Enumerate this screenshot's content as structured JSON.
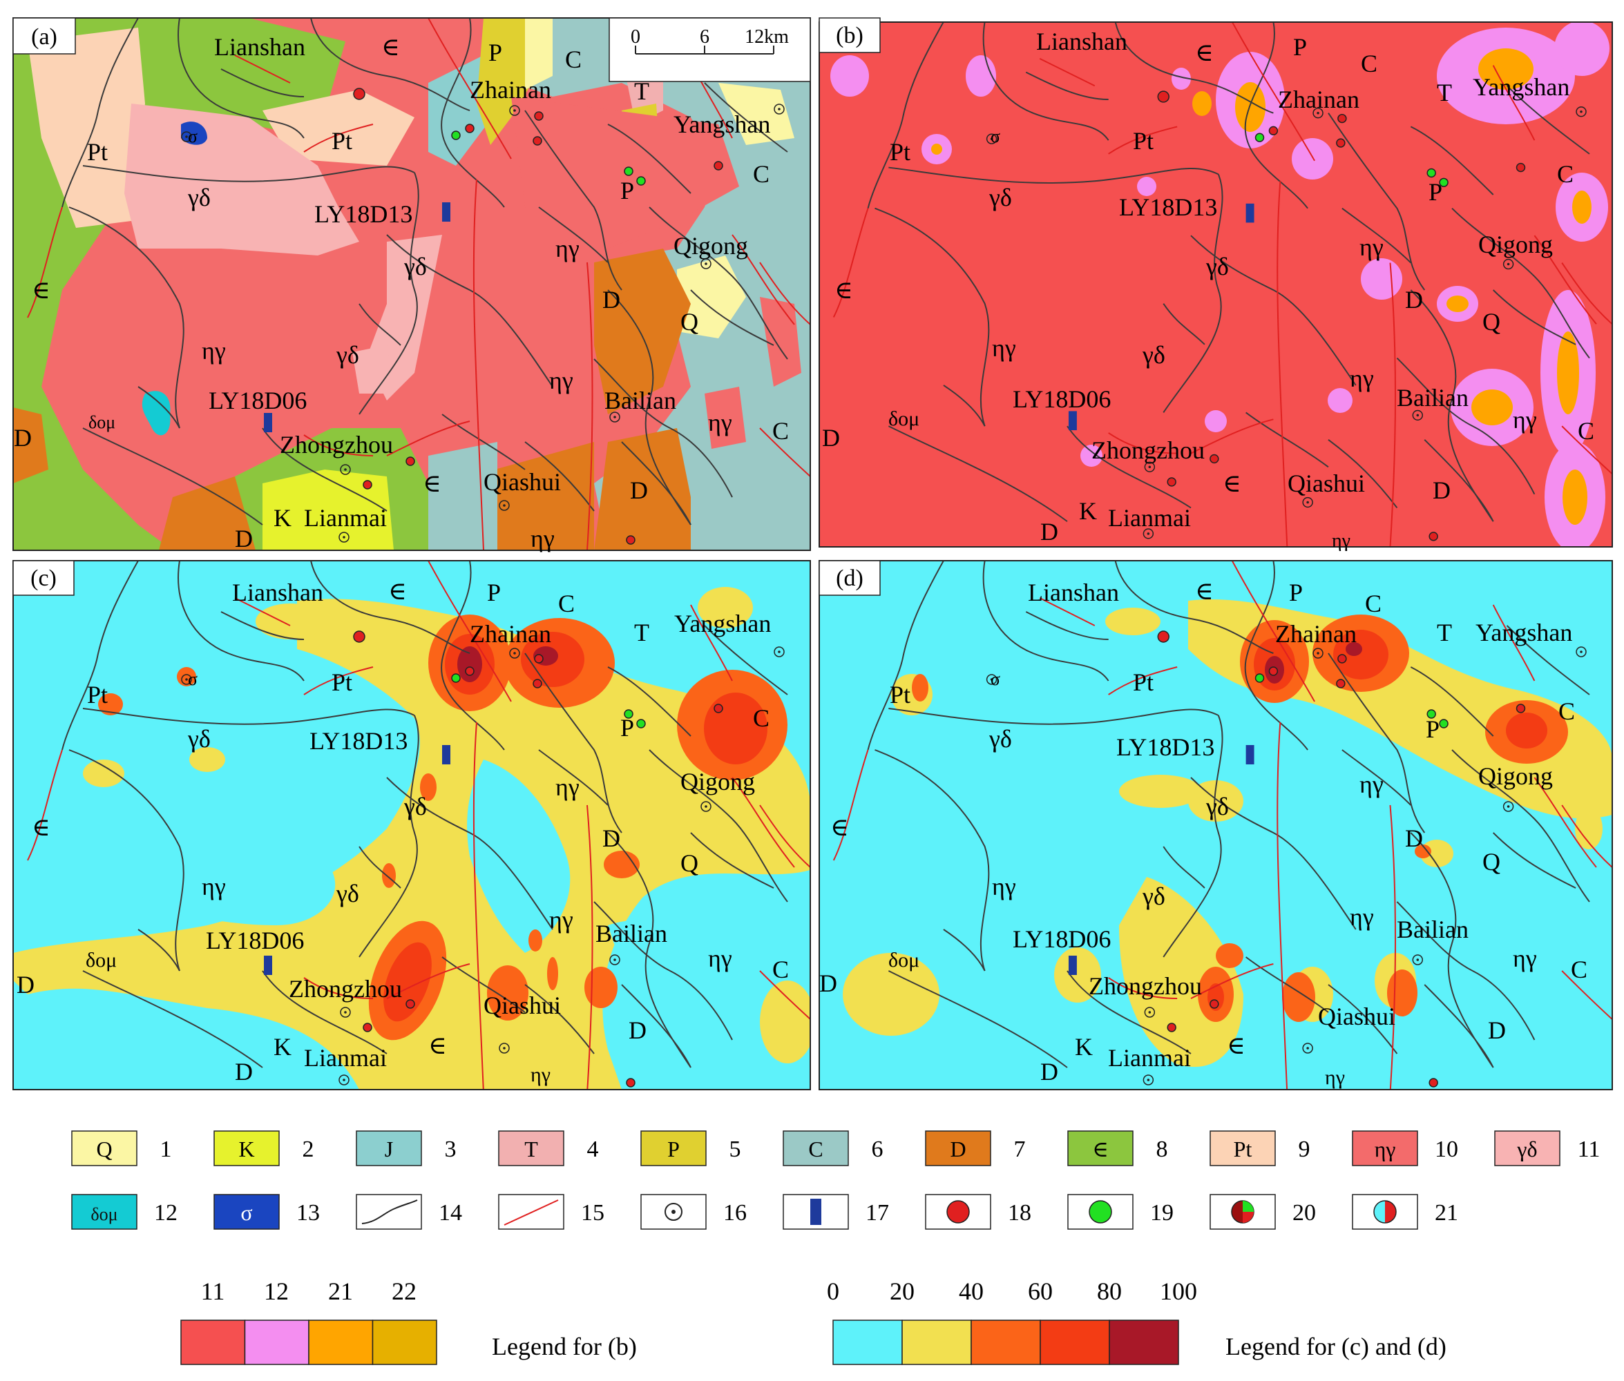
{
  "panels": {
    "a": {
      "letter": "(a)"
    },
    "b": {
      "letter": "(b)"
    },
    "c": {
      "letter": "(c)"
    },
    "d": {
      "letter": "(d)"
    }
  },
  "scale_bar": {
    "ticks": [
      "0",
      "6",
      "12km"
    ]
  },
  "place_names": {
    "lianshan": "Lianshan",
    "zhainan": "Zhainan",
    "yangshan": "Yangshan",
    "qigong": "Qigong",
    "bailian": "Bailian",
    "zhongzhou": "Zhongzhou",
    "qiashui": "Qiashui",
    "lianmai": "Lianmai",
    "ly18d13": "LY18D13",
    "ly18d06": "LY18D06"
  },
  "unit_codes": {
    "Q": "Q",
    "K": "K",
    "J": "J",
    "T": "T",
    "P": "P",
    "C": "C",
    "D": "D",
    "Cam": "∈",
    "Pt": "Pt",
    "eta_gamma": "ηγ",
    "gamma_delta": "γδ",
    "delta_o_mu": "δομ",
    "sigma": "σ"
  },
  "legend_items": [
    {
      "num": "1",
      "code": "Q",
      "color": "#fbf6a4"
    },
    {
      "num": "2",
      "code": "K",
      "color": "#e6f22d"
    },
    {
      "num": "3",
      "code": "J",
      "color": "#8ccfcf"
    },
    {
      "num": "4",
      "code": "T",
      "color": "#f2b0b0"
    },
    {
      "num": "5",
      "code": "P",
      "color": "#e0d030"
    },
    {
      "num": "6",
      "code": "C",
      "color": "#9bc9c6"
    },
    {
      "num": "7",
      "code": "D",
      "color": "#e07a1c"
    },
    {
      "num": "8",
      "code": "∈",
      "color": "#8cc63e"
    },
    {
      "num": "9",
      "code": "Pt",
      "color": "#fcd3b5"
    },
    {
      "num": "10",
      "code": "ηγ",
      "color": "#f36b6b"
    },
    {
      "num": "11",
      "code": "γδ",
      "color": "#f8b3b3"
    },
    {
      "num": "12",
      "code": "δομ",
      "color": "#14cbd3"
    },
    {
      "num": "13",
      "code": "σ",
      "color": "#1a45c0"
    },
    {
      "num": "14",
      "code": "",
      "color": "#ffffff",
      "symbol": "contact-line"
    },
    {
      "num": "15",
      "code": "",
      "color": "#ffffff",
      "symbol": "fault-line"
    },
    {
      "num": "16",
      "code": "",
      "color": "#ffffff",
      "symbol": "town"
    },
    {
      "num": "17",
      "code": "",
      "color": "#ffffff",
      "symbol": "sample"
    },
    {
      "num": "18",
      "code": "",
      "color": "#ffffff",
      "symbol": "red-dot"
    },
    {
      "num": "19",
      "code": "",
      "color": "#ffffff",
      "symbol": "green-dot"
    },
    {
      "num": "20",
      "code": "",
      "color": "#ffffff",
      "symbol": "red-green-dot"
    },
    {
      "num": "21",
      "code": "",
      "color": "#ffffff",
      "symbol": "cyan-red-dot"
    }
  ],
  "legend_b": {
    "labels": [
      "11",
      "12",
      "21",
      "22"
    ],
    "colors": [
      "#f55050",
      "#f48ef0",
      "#ffa500",
      "#e6b000"
    ],
    "caption": "Legend for (b)"
  },
  "legend_cd": {
    "ticks": [
      "0",
      "20",
      "40",
      "60",
      "80",
      "100"
    ],
    "colors": [
      "#5ef2fa",
      "#f2e050",
      "#fb6418",
      "#f33c14",
      "#a81828"
    ],
    "caption": "Legend for (c) and (d)"
  },
  "colors": {
    "contact": "#3a3a3a",
    "fault": "#e02020",
    "sample": "#1e3a9c",
    "red_dot": "#e02020",
    "green_dot": "#22e022",
    "dark_red": "#9b1010"
  }
}
